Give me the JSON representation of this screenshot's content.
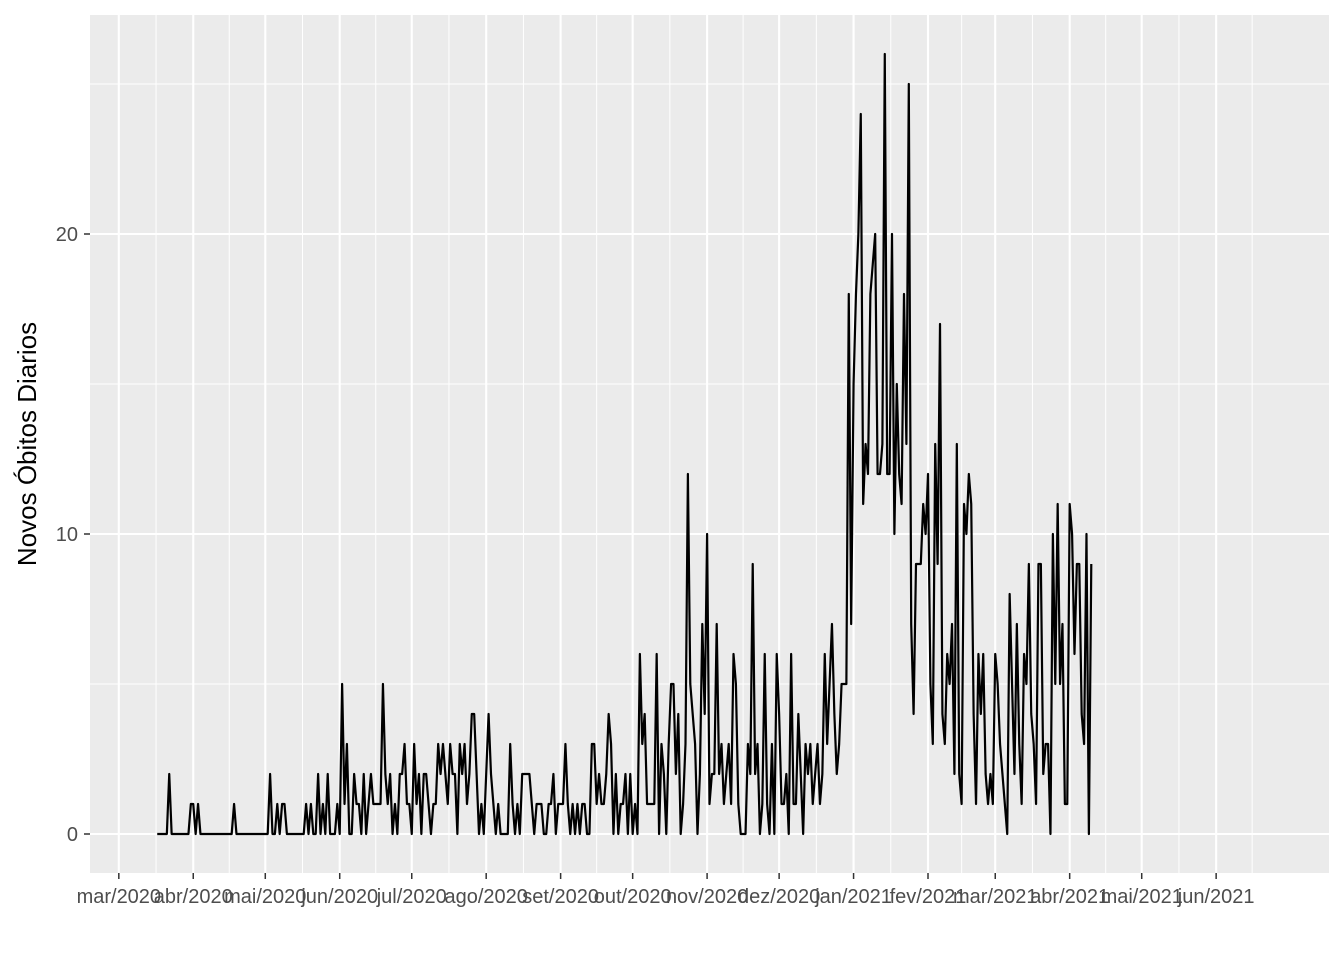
{
  "chart_data": {
    "type": "line",
    "title": "",
    "xlabel": "",
    "ylabel": "Novos Óbitos Diarios",
    "x_start": "2020-03-17",
    "xlim": [
      "2020-02-18",
      "2021-07-18"
    ],
    "ylim": [
      -1.3,
      27.3
    ],
    "grid": true,
    "legend": "none",
    "x_ticks": [
      "2020-03-01",
      "2020-04-01",
      "2020-05-01",
      "2020-06-01",
      "2020-07-01",
      "2020-08-01",
      "2020-09-01",
      "2020-10-01",
      "2020-11-01",
      "2020-12-01",
      "2021-01-01",
      "2021-02-01",
      "2021-03-01",
      "2021-04-01",
      "2021-05-01",
      "2021-06-01"
    ],
    "x_tick_labels": [
      "mar/2020",
      "abr/2020",
      "mai/2020",
      "jun/2020",
      "jul/2020",
      "ago/2020",
      "set/2020",
      "out/2020",
      "nov/2020",
      "dez/2020",
      "jan/2021",
      "fev/2021",
      "mar/2021",
      "abr/2021",
      "mai/2021",
      "jun/2021"
    ],
    "y_ticks": [
      0,
      10,
      20
    ],
    "y_tick_labels": [
      "0",
      "10",
      "20"
    ],
    "colors": {
      "panel": "#ebebeb",
      "grid": "#ffffff",
      "line": "#000000",
      "tick_text": "#4d4d4d"
    },
    "series": [
      {
        "values": [
          0,
          0,
          0,
          0,
          0,
          2,
          0,
          0,
          0,
          0,
          0,
          0,
          0,
          0,
          1,
          1,
          0,
          1,
          0,
          0,
          0,
          0,
          0,
          0,
          0,
          0,
          0,
          0,
          0,
          0,
          0,
          0,
          1,
          0,
          0,
          0,
          0,
          0,
          0,
          0,
          0,
          0,
          0,
          0,
          0,
          0,
          0,
          2,
          0,
          0,
          1,
          0,
          1,
          1,
          0,
          0,
          0,
          0,
          0,
          0,
          0,
          0,
          1,
          0,
          1,
          0,
          0,
          2,
          0,
          1,
          0,
          2,
          0,
          0,
          0,
          1,
          0,
          5,
          1,
          3,
          0,
          0,
          2,
          1,
          1,
          0,
          2,
          0,
          1,
          2,
          1,
          1,
          1,
          1,
          5,
          2,
          1,
          2,
          0,
          1,
          0,
          2,
          2,
          3,
          1,
          1,
          0,
          3,
          1,
          2,
          0,
          2,
          2,
          1,
          0,
          1,
          1,
          3,
          2,
          3,
          2,
          1,
          3,
          2,
          2,
          0,
          3,
          2,
          3,
          1,
          2,
          4,
          4,
          2,
          0,
          1,
          0,
          2,
          4,
          2,
          1,
          0,
          1,
          0,
          0,
          0,
          0,
          3,
          1,
          0,
          1,
          0,
          2,
          2,
          2,
          2,
          1,
          0,
          1,
          1,
          1,
          0,
          0,
          1,
          1,
          2,
          0,
          1,
          1,
          1,
          3,
          1,
          0,
          1,
          0,
          1,
          0,
          1,
          1,
          0,
          0,
          3,
          3,
          1,
          2,
          1,
          1,
          2,
          4,
          3,
          0,
          2,
          0,
          1,
          1,
          2,
          0,
          2,
          0,
          1,
          0,
          6,
          3,
          4,
          1,
          1,
          1,
          1,
          6,
          0,
          3,
          2,
          0,
          3,
          5,
          5,
          2,
          4,
          0,
          1,
          3,
          12,
          5,
          4,
          3,
          0,
          2,
          7,
          4,
          10,
          1,
          2,
          2,
          7,
          2,
          3,
          1,
          2,
          3,
          1,
          6,
          5,
          1,
          0,
          0,
          0,
          3,
          2,
          9,
          2,
          3,
          0,
          1,
          6,
          1,
          0,
          3,
          0,
          6,
          4,
          1,
          1,
          2,
          0,
          6,
          1,
          1,
          4,
          2,
          0,
          3,
          2,
          3,
          1,
          2,
          3,
          1,
          2,
          6,
          3,
          5,
          7,
          4,
          2,
          3,
          5,
          5,
          5,
          18,
          7,
          15,
          18,
          20,
          24,
          11,
          13,
          12,
          18,
          19,
          20,
          12,
          12,
          13,
          26,
          12,
          12,
          20,
          10,
          15,
          12,
          11,
          18,
          13,
          25,
          7,
          4,
          9,
          9,
          9,
          11,
          10,
          12,
          5,
          3,
          13,
          9,
          17,
          4,
          3,
          6,
          5,
          7,
          2,
          13,
          2,
          1,
          11,
          10,
          12,
          11,
          4,
          1,
          6,
          4,
          6,
          2,
          1,
          2,
          1,
          6,
          5,
          3,
          2,
          1,
          0,
          8,
          5,
          2,
          7,
          3,
          1,
          6,
          5,
          9,
          4,
          3,
          1,
          9,
          9,
          2,
          3,
          3,
          0,
          10,
          5,
          11,
          5,
          7,
          1,
          1,
          11,
          10,
          6,
          9,
          9,
          4,
          3,
          10,
          0,
          9
        ]
      }
    ]
  }
}
